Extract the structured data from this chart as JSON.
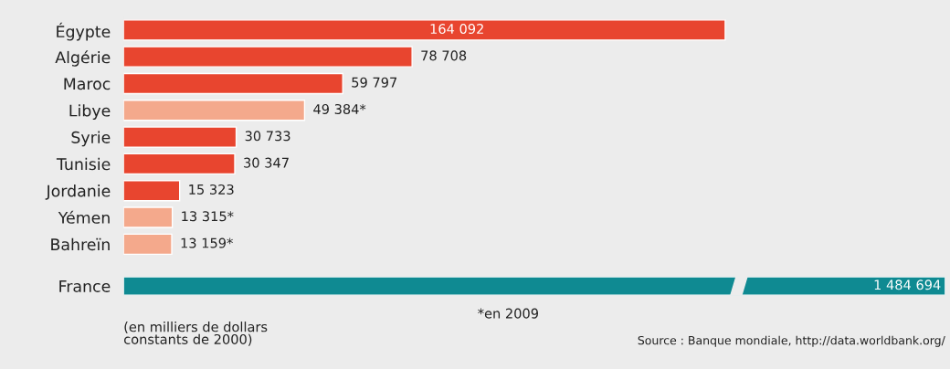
{
  "chart_data": [
    {
      "type": "bar",
      "orientation": "horizontal",
      "categories": [
        "Égypte",
        "Algérie",
        "Maroc",
        "Libye",
        "Syrie",
        "Tunisie",
        "Jordanie",
        "Yémen",
        "Bahreïn"
      ],
      "values": [
        164092,
        78708,
        59797,
        49384,
        30733,
        30347,
        15323,
        13315,
        13159
      ],
      "colors": [
        "#e8452f",
        "#e8452f",
        "#e8452f",
        "#f4a98c",
        "#e8452f",
        "#e8452f",
        "#e8452f",
        "#f4a98c",
        "#f4a98c"
      ],
      "value_labels": [
        "164 092",
        "78 708",
        "59 797",
        "49 384*",
        "30 733",
        "30 347",
        "15 323",
        "13 315*",
        "13 159*"
      ],
      "grid": false,
      "legend": false
    },
    {
      "type": "bar",
      "orientation": "horizontal",
      "categories": [
        "France"
      ],
      "values": [
        1484694
      ],
      "colors": [
        "#0f8a92"
      ],
      "value_labels": [
        "1 484 694"
      ],
      "grid": false,
      "legend": false,
      "annotations": [
        "(en milliers de dollars\nconstants de 2000)",
        "*en 2009",
        "Source : Banque mondiale, http://data.worldbank.org/"
      ]
    }
  ]
}
